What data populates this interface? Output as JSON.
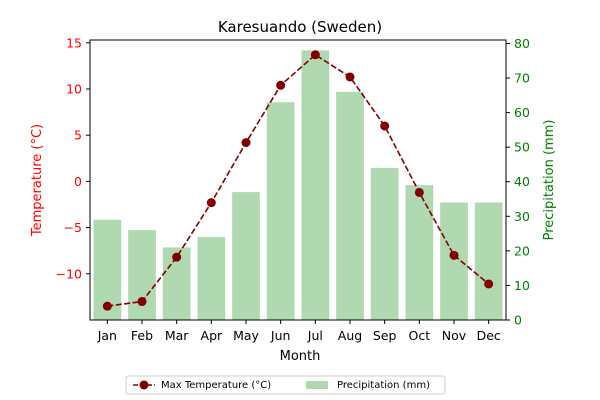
{
  "chart_data": {
    "type": "bar",
    "title": "Karesuando (Sweden)",
    "xlabel": "Month",
    "categories": [
      "Jan",
      "Feb",
      "Mar",
      "Apr",
      "May",
      "Jun",
      "Jul",
      "Aug",
      "Sep",
      "Oct",
      "Nov",
      "Dec"
    ],
    "left_axis": {
      "label": "Temperature (°C)",
      "range": [
        -15,
        15.3
      ],
      "ticks": [
        -10,
        -5,
        0,
        5,
        10,
        15
      ],
      "color": "#ff0000"
    },
    "right_axis": {
      "label": "Precipitation (mm)",
      "range": [
        0,
        81
      ],
      "ticks": [
        0,
        10,
        20,
        30,
        40,
        50,
        60,
        70,
        80
      ],
      "color": "#008000"
    },
    "series": [
      {
        "name": "Max Temperature (°C)",
        "type": "line",
        "axis": "left",
        "values": [
          -13.5,
          -13.0,
          -8.2,
          -2.3,
          4.2,
          10.4,
          13.7,
          11.3,
          6.0,
          -1.2,
          -8.0,
          -11.1
        ],
        "color": "#800000"
      },
      {
        "name": "Precipitation (mm)",
        "type": "bar",
        "axis": "right",
        "values": [
          29,
          26,
          21,
          24,
          37,
          63,
          78,
          66,
          44,
          39,
          34,
          34
        ],
        "color": "#b0d9b1"
      }
    ],
    "grid": false,
    "legend_position": "bottom-center"
  }
}
